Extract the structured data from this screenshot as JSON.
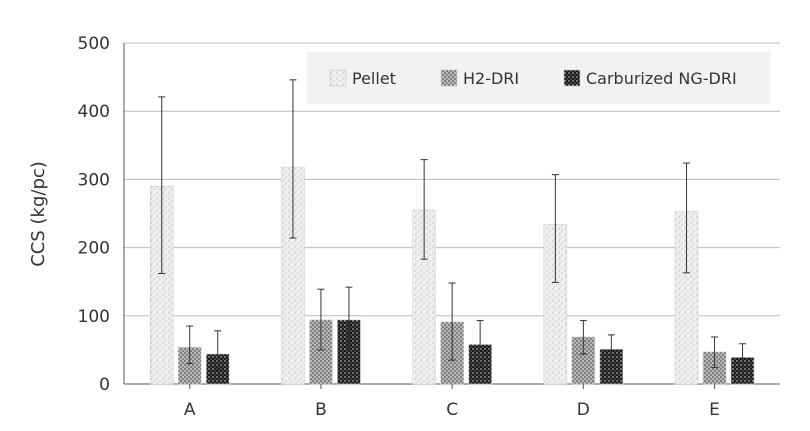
{
  "chart_data": {
    "type": "bar",
    "title": "",
    "xlabel": "",
    "ylabel": "CCS (kg/pc)",
    "ylim": [
      0,
      500
    ],
    "yticks": [
      0,
      100,
      200,
      300,
      400,
      500
    ],
    "grid": true,
    "legend_position": "top-right",
    "categories": [
      "A",
      "B",
      "C",
      "D",
      "E"
    ],
    "series": [
      {
        "name": "Pellet",
        "pattern": "light-stipple",
        "values": [
          290,
          318,
          255,
          234,
          253
        ],
        "err_low": [
          162,
          214,
          183,
          149,
          163
        ],
        "err_high": [
          421,
          446,
          329,
          307,
          324
        ]
      },
      {
        "name": "H2-DRI",
        "pattern": "medium-stipple",
        "values": [
          54,
          94,
          91,
          69,
          47
        ],
        "err_low": [
          30,
          50,
          35,
          44,
          24
        ],
        "err_high": [
          85,
          139,
          148,
          93,
          69
        ]
      },
      {
        "name": "Carburized NG-DRI",
        "pattern": "dense-stipple",
        "values": [
          44,
          94,
          58,
          51,
          39
        ],
        "err_low": [
          22,
          50,
          28,
          36,
          24
        ],
        "err_high": [
          78,
          142,
          93,
          72,
          59
        ]
      }
    ],
    "colors": {
      "grid": "#bbbbbb",
      "axis": "#555555",
      "legend_bg": "#f2f2f2",
      "error_bar": "#333333"
    }
  }
}
